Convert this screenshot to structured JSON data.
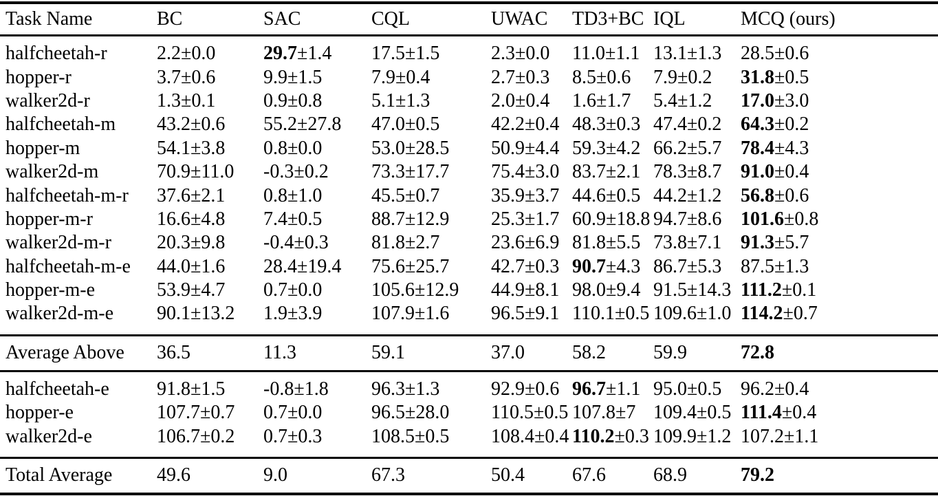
{
  "table": {
    "pm_symbol": "±",
    "columns": [
      "Task Name",
      "BC",
      "SAC",
      "CQL",
      "UWAC",
      "TD3+BC",
      "IQL",
      "MCQ (ours)"
    ],
    "sections": [
      {
        "kind": "tasks",
        "rows": [
          {
            "task": "halfcheetah-r",
            "values": [
              {
                "mean": "2.2",
                "std": "0.0"
              },
              {
                "mean": "29.7",
                "std": "1.4",
                "bold": true
              },
              {
                "mean": "17.5",
                "std": "1.5"
              },
              {
                "mean": "2.3",
                "std": "0.0"
              },
              {
                "mean": "11.0",
                "std": "1.1"
              },
              {
                "mean": "13.1",
                "std": "1.3"
              },
              {
                "mean": "28.5",
                "std": "0.6"
              }
            ]
          },
          {
            "task": "hopper-r",
            "values": [
              {
                "mean": "3.7",
                "std": "0.6"
              },
              {
                "mean": "9.9",
                "std": "1.5"
              },
              {
                "mean": "7.9",
                "std": "0.4"
              },
              {
                "mean": "2.7",
                "std": "0.3"
              },
              {
                "mean": "8.5",
                "std": "0.6"
              },
              {
                "mean": "7.9",
                "std": "0.2"
              },
              {
                "mean": "31.8",
                "std": "0.5",
                "bold": true
              }
            ]
          },
          {
            "task": "walker2d-r",
            "values": [
              {
                "mean": "1.3",
                "std": "0.1"
              },
              {
                "mean": "0.9",
                "std": "0.8"
              },
              {
                "mean": "5.1",
                "std": "1.3"
              },
              {
                "mean": "2.0",
                "std": "0.4"
              },
              {
                "mean": "1.6",
                "std": "1.7"
              },
              {
                "mean": "5.4",
                "std": "1.2"
              },
              {
                "mean": "17.0",
                "std": "3.0",
                "bold": true
              }
            ]
          },
          {
            "task": "halfcheetah-m",
            "values": [
              {
                "mean": "43.2",
                "std": "0.6"
              },
              {
                "mean": "55.2",
                "std": "27.8"
              },
              {
                "mean": "47.0",
                "std": "0.5"
              },
              {
                "mean": "42.2",
                "std": "0.4"
              },
              {
                "mean": "48.3",
                "std": "0.3"
              },
              {
                "mean": "47.4",
                "std": "0.2"
              },
              {
                "mean": "64.3",
                "std": "0.2",
                "bold": true
              }
            ]
          },
          {
            "task": "hopper-m",
            "values": [
              {
                "mean": "54.1",
                "std": "3.8"
              },
              {
                "mean": "0.8",
                "std": "0.0"
              },
              {
                "mean": "53.0",
                "std": "28.5"
              },
              {
                "mean": "50.9",
                "std": "4.4"
              },
              {
                "mean": "59.3",
                "std": "4.2"
              },
              {
                "mean": "66.2",
                "std": "5.7"
              },
              {
                "mean": "78.4",
                "std": "4.3",
                "bold": true
              }
            ]
          },
          {
            "task": "walker2d-m",
            "values": [
              {
                "mean": "70.9",
                "std": "11.0"
              },
              {
                "mean": "-0.3",
                "std": "0.2"
              },
              {
                "mean": "73.3",
                "std": "17.7"
              },
              {
                "mean": "75.4",
                "std": "3.0"
              },
              {
                "mean": "83.7",
                "std": "2.1"
              },
              {
                "mean": "78.3",
                "std": "8.7"
              },
              {
                "mean": "91.0",
                "std": "0.4",
                "bold": true
              }
            ]
          },
          {
            "task": "halfcheetah-m-r",
            "values": [
              {
                "mean": "37.6",
                "std": "2.1"
              },
              {
                "mean": "0.8",
                "std": "1.0"
              },
              {
                "mean": "45.5",
                "std": "0.7"
              },
              {
                "mean": "35.9",
                "std": "3.7"
              },
              {
                "mean": "44.6",
                "std": "0.5"
              },
              {
                "mean": "44.2",
                "std": "1.2"
              },
              {
                "mean": "56.8",
                "std": "0.6",
                "bold": true
              }
            ]
          },
          {
            "task": "hopper-m-r",
            "values": [
              {
                "mean": "16.6",
                "std": "4.8"
              },
              {
                "mean": "7.4",
                "std": "0.5"
              },
              {
                "mean": "88.7",
                "std": "12.9"
              },
              {
                "mean": "25.3",
                "std": "1.7"
              },
              {
                "mean": "60.9",
                "std": "18.8"
              },
              {
                "mean": "94.7",
                "std": "8.6"
              },
              {
                "mean": "101.6",
                "std": "0.8",
                "bold": true
              }
            ]
          },
          {
            "task": "walker2d-m-r",
            "values": [
              {
                "mean": "20.3",
                "std": "9.8"
              },
              {
                "mean": "-0.4",
                "std": "0.3"
              },
              {
                "mean": "81.8",
                "std": "2.7"
              },
              {
                "mean": "23.6",
                "std": "6.9"
              },
              {
                "mean": "81.8",
                "std": "5.5"
              },
              {
                "mean": "73.8",
                "std": "7.1"
              },
              {
                "mean": "91.3",
                "std": "5.7",
                "bold": true
              }
            ]
          },
          {
            "task": "halfcheetah-m-e",
            "values": [
              {
                "mean": "44.0",
                "std": "1.6"
              },
              {
                "mean": "28.4",
                "std": "19.4"
              },
              {
                "mean": "75.6",
                "std": "25.7"
              },
              {
                "mean": "42.7",
                "std": "0.3"
              },
              {
                "mean": "90.7",
                "std": "4.3",
                "bold": true
              },
              {
                "mean": "86.7",
                "std": "5.3"
              },
              {
                "mean": "87.5",
                "std": "1.3"
              }
            ]
          },
          {
            "task": "hopper-m-e",
            "values": [
              {
                "mean": "53.9",
                "std": "4.7"
              },
              {
                "mean": "0.7",
                "std": "0.0"
              },
              {
                "mean": "105.6",
                "std": "12.9"
              },
              {
                "mean": "44.9",
                "std": "8.1"
              },
              {
                "mean": "98.0",
                "std": "9.4"
              },
              {
                "mean": "91.5",
                "std": "14.3"
              },
              {
                "mean": "111.2",
                "std": "0.1",
                "bold": true
              }
            ]
          },
          {
            "task": "walker2d-m-e",
            "values": [
              {
                "mean": "90.1",
                "std": "13.2"
              },
              {
                "mean": "1.9",
                "std": "3.9"
              },
              {
                "mean": "107.9",
                "std": "1.6"
              },
              {
                "mean": "96.5",
                "std": "9.1"
              },
              {
                "mean": "110.1",
                "std": "0.5"
              },
              {
                "mean": "109.6",
                "std": "1.0"
              },
              {
                "mean": "114.2",
                "std": "0.7",
                "bold": true
              }
            ]
          }
        ]
      },
      {
        "kind": "summary",
        "rows": [
          {
            "task": "Average Above",
            "values": [
              {
                "mean": "36.5"
              },
              {
                "mean": "11.3"
              },
              {
                "mean": "59.1"
              },
              {
                "mean": "37.0"
              },
              {
                "mean": "58.2"
              },
              {
                "mean": "59.9"
              },
              {
                "mean": "72.8",
                "bold": true
              }
            ]
          }
        ]
      },
      {
        "kind": "tasks",
        "rows": [
          {
            "task": "halfcheetah-e",
            "values": [
              {
                "mean": "91.8",
                "std": "1.5"
              },
              {
                "mean": "-0.8",
                "std": "1.8"
              },
              {
                "mean": "96.3",
                "std": "1.3"
              },
              {
                "mean": "92.9",
                "std": "0.6"
              },
              {
                "mean": "96.7",
                "std": "1.1",
                "bold": true
              },
              {
                "mean": "95.0",
                "std": "0.5"
              },
              {
                "mean": "96.2",
                "std": "0.4"
              }
            ]
          },
          {
            "task": "hopper-e",
            "values": [
              {
                "mean": "107.7",
                "std": "0.7"
              },
              {
                "mean": "0.7",
                "std": "0.0"
              },
              {
                "mean": "96.5",
                "std": "28.0"
              },
              {
                "mean": "110.5",
                "std": "0.5"
              },
              {
                "mean": "107.8",
                "std": "7"
              },
              {
                "mean": "109.4",
                "std": "0.5"
              },
              {
                "mean": "111.4",
                "std": "0.4",
                "bold": true
              }
            ]
          },
          {
            "task": "walker2d-e",
            "values": [
              {
                "mean": "106.7",
                "std": "0.2"
              },
              {
                "mean": "0.7",
                "std": "0.3"
              },
              {
                "mean": "108.5",
                "std": "0.5"
              },
              {
                "mean": "108.4",
                "std": "0.4"
              },
              {
                "mean": "110.2",
                "std": "0.3",
                "bold": true
              },
              {
                "mean": "109.9",
                "std": "1.2"
              },
              {
                "mean": "107.2",
                "std": "1.1"
              }
            ]
          }
        ]
      },
      {
        "kind": "summary",
        "rows": [
          {
            "task": "Total Average",
            "values": [
              {
                "mean": "49.6"
              },
              {
                "mean": "9.0"
              },
              {
                "mean": "67.3"
              },
              {
                "mean": "50.4"
              },
              {
                "mean": "67.6"
              },
              {
                "mean": "68.9"
              },
              {
                "mean": "79.2",
                "bold": true
              }
            ]
          }
        ]
      }
    ]
  }
}
